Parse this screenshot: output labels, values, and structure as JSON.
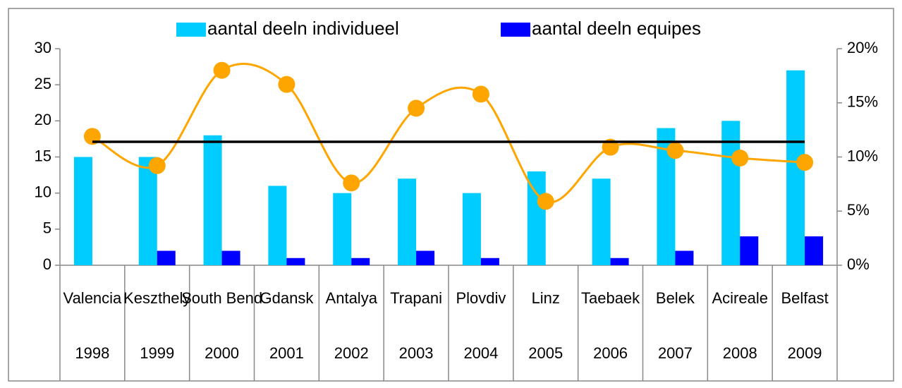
{
  "chart_data": {
    "type": "bar",
    "categories": [
      "Valencia",
      "Keszthely",
      "South Bend",
      "Gdansk",
      "Antalya",
      "Trapani",
      "Plovdiv",
      "Linz",
      "Taebaek",
      "Belek",
      "Acireale",
      "Belfast"
    ],
    "category_groups": [
      "1998",
      "1999",
      "2000",
      "2001",
      "2002",
      "2003",
      "2004",
      "2005",
      "2006",
      "2007",
      "2008",
      "2009"
    ],
    "series": [
      {
        "name": "aantal deeln individueel",
        "type": "bar",
        "color": "#00ccff",
        "values": [
          15,
          15,
          18,
          11,
          10,
          12,
          10,
          13,
          12,
          19,
          20,
          27
        ]
      },
      {
        "name": "aantal deeln equipes",
        "type": "bar",
        "color": "#0000ff",
        "values": [
          0,
          2,
          2,
          1,
          1,
          2,
          1,
          0,
          1,
          2,
          4,
          4
        ]
      },
      {
        "type": "line",
        "axis": "y2",
        "color": "#ffa500",
        "smooth": true,
        "markers": true,
        "values": [
          11.9,
          9.2,
          18.0,
          16.7,
          7.6,
          14.5,
          15.8,
          5.9,
          10.9,
          10.6,
          9.9,
          9.5
        ]
      },
      {
        "type": "line",
        "axis": "y2",
        "color": "#000000",
        "smooth": false,
        "markers": false,
        "values": [
          11.4,
          11.4,
          11.4,
          11.4,
          11.4,
          11.4,
          11.4,
          11.4,
          11.4,
          11.4,
          11.4,
          11.4
        ]
      }
    ],
    "ylim": [
      0,
      30
    ],
    "yticks": [
      0,
      5,
      10,
      15,
      20,
      25,
      30
    ],
    "y2lim": [
      0,
      20
    ],
    "y2ticks": [
      {
        "value": 0,
        "label": "0%"
      },
      {
        "value": 5,
        "label": "5%"
      },
      {
        "value": 10,
        "label": "10%"
      },
      {
        "value": 15,
        "label": "15%"
      },
      {
        "value": 20,
        "label": "20%"
      }
    ],
    "legend": "top",
    "grid": false
  }
}
